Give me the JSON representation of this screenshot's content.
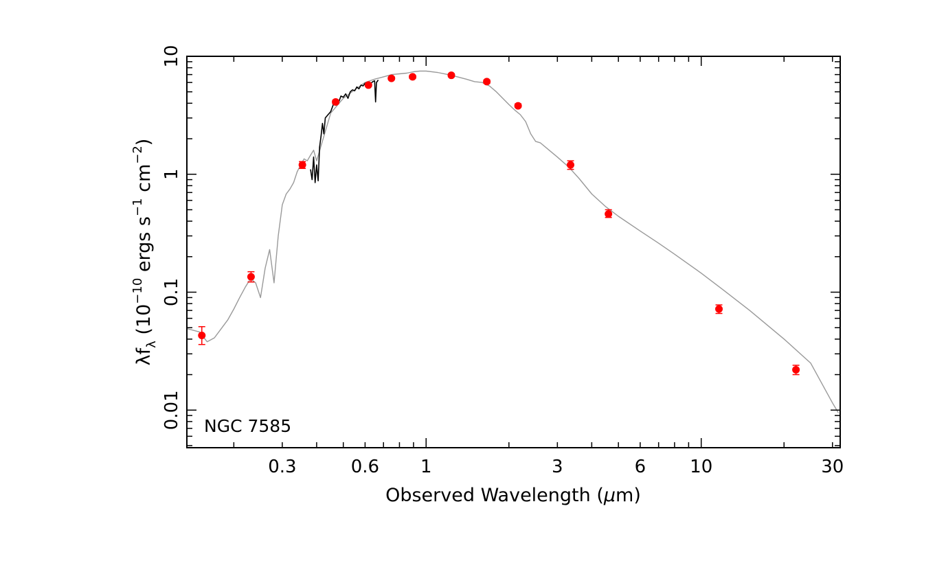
{
  "chart_data": {
    "type": "scatter",
    "annotation": "NGC 7585",
    "xlabel": {
      "main": "Observed Wavelength (",
      "symbol": "μ",
      "unit": "m)"
    },
    "ylabel": {
      "prefix": "λf",
      "sub": "λ",
      "mid": " (10",
      "exp1": "−10",
      "mid2": " ergs s",
      "exp2": "−1",
      "mid3": " cm",
      "exp3": "−2",
      "end": ")"
    },
    "x_scale": "log",
    "y_scale": "log",
    "xlim": [
      0.135,
      32
    ],
    "ylim": [
      0.0048,
      10
    ],
    "x_ticks": [
      {
        "value": 0.3,
        "label": "0.3"
      },
      {
        "value": 0.6,
        "label": "0.6"
      },
      {
        "value": 1,
        "label": "1"
      },
      {
        "value": 3,
        "label": "3"
      },
      {
        "value": 6,
        "label": "6"
      },
      {
        "value": 10,
        "label": "10"
      },
      {
        "value": 30,
        "label": "30"
      }
    ],
    "y_ticks": [
      {
        "value": 0.01,
        "label": "0.01"
      },
      {
        "value": 0.1,
        "label": "0.1"
      },
      {
        "value": 1,
        "label": "1"
      },
      {
        "value": 10,
        "label": "10"
      }
    ],
    "grid": false,
    "colors": {
      "photometry": "#ff0000",
      "model": "#999999",
      "spectrum": "#000000",
      "axes": "#000000"
    },
    "series": [
      {
        "kind": "points_with_errors",
        "x": [
          0.153,
          0.231,
          0.355,
          0.469,
          0.617,
          0.748,
          0.893,
          1.235,
          1.662,
          2.159,
          3.35,
          4.6,
          11.6,
          22.1
        ],
        "y": [
          0.043,
          0.135,
          1.2,
          4.1,
          5.7,
          6.5,
          6.7,
          6.9,
          6.1,
          3.8,
          1.2,
          0.46,
          0.072,
          0.022
        ],
        "yerr_low": [
          0.036,
          0.122,
          1.12,
          3.95,
          5.55,
          6.35,
          6.5,
          6.7,
          5.9,
          3.7,
          1.1,
          0.43,
          0.066,
          0.02
        ],
        "yerr_high": [
          0.051,
          0.149,
          1.28,
          4.25,
          5.85,
          6.65,
          6.9,
          7.1,
          6.3,
          3.95,
          1.3,
          0.5,
          0.078,
          0.024
        ]
      },
      {
        "kind": "model_line",
        "x": [
          0.135,
          0.14,
          0.15,
          0.16,
          0.17,
          0.18,
          0.19,
          0.2,
          0.21,
          0.22,
          0.23,
          0.24,
          0.25,
          0.26,
          0.27,
          0.28,
          0.29,
          0.3,
          0.31,
          0.32,
          0.33,
          0.34,
          0.35,
          0.36,
          0.37,
          0.38,
          0.39,
          0.4,
          0.45,
          0.5,
          0.55,
          0.6,
          0.65,
          0.7,
          0.75,
          0.8,
          0.85,
          0.9,
          0.95,
          1.0,
          1.1,
          1.2,
          1.3,
          1.4,
          1.5,
          1.6,
          1.7,
          1.8,
          1.9,
          2.0,
          2.1,
          2.2,
          2.3,
          2.4,
          2.5,
          2.6,
          2.8,
          3.0,
          3.3,
          3.6,
          4.0,
          4.5,
          5.0,
          6.0,
          7.0,
          8.0,
          10.0,
          12.0,
          15.0,
          20.0,
          25.0,
          30.0,
          31.5
        ],
        "y": [
          0.049,
          0.048,
          0.046,
          0.038,
          0.041,
          0.049,
          0.058,
          0.072,
          0.09,
          0.11,
          0.13,
          0.12,
          0.09,
          0.16,
          0.23,
          0.12,
          0.3,
          0.55,
          0.68,
          0.75,
          0.85,
          1.05,
          1.2,
          1.35,
          1.3,
          1.45,
          1.6,
          1.3,
          3.3,
          4.4,
          5.2,
          6.0,
          6.4,
          6.7,
          7.0,
          7.1,
          7.2,
          7.4,
          7.5,
          7.5,
          7.3,
          7.0,
          6.7,
          6.4,
          6.1,
          6.0,
          5.6,
          5.0,
          4.4,
          3.9,
          3.5,
          3.2,
          2.8,
          2.2,
          1.9,
          1.85,
          1.6,
          1.4,
          1.15,
          0.92,
          0.68,
          0.53,
          0.44,
          0.33,
          0.26,
          0.21,
          0.145,
          0.105,
          0.07,
          0.04,
          0.025,
          0.0115,
          0.0095
        ]
      },
      {
        "kind": "spectrum_line",
        "x": [
          0.38,
          0.385,
          0.39,
          0.395,
          0.4,
          0.405,
          0.41,
          0.415,
          0.42,
          0.425,
          0.43,
          0.44,
          0.45,
          0.46,
          0.47,
          0.48,
          0.49,
          0.5,
          0.51,
          0.52,
          0.53,
          0.54,
          0.55,
          0.56,
          0.57,
          0.58,
          0.59,
          0.6,
          0.61,
          0.62,
          0.63,
          0.64,
          0.65,
          0.655,
          0.66,
          0.67
        ],
        "y": [
          1.1,
          0.9,
          1.4,
          0.85,
          1.2,
          0.88,
          1.7,
          2.1,
          2.7,
          2.2,
          3.0,
          3.2,
          3.4,
          3.9,
          4.2,
          4.0,
          4.6,
          4.5,
          4.8,
          4.4,
          5.0,
          5.2,
          5.1,
          5.5,
          5.3,
          5.7,
          5.6,
          5.9,
          6.0,
          5.8,
          5.9,
          6.1,
          6.2,
          4.1,
          6.0,
          6.3
        ]
      }
    ]
  }
}
